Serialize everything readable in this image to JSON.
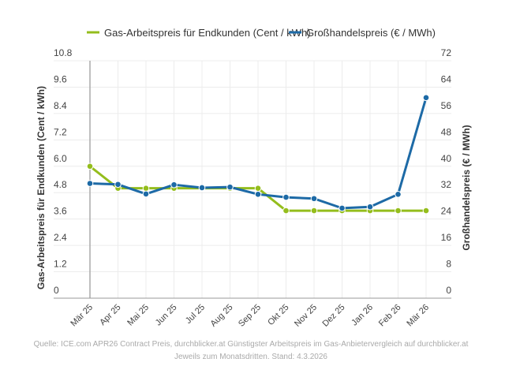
{
  "chart_data": {
    "type": "line",
    "categories": [
      "Mär 25",
      "Apr 25",
      "Mai 25",
      "Jun 25",
      "Jul 25",
      "Aug 25",
      "Sep 25",
      "Okt 25",
      "Nov 25",
      "Dez 25",
      "Jan 26",
      "Feb 26",
      "Mär 26"
    ],
    "series": [
      {
        "name": "Gas-Arbeitspreis für Endkunden (Cent / kWh)",
        "axis": "left",
        "color": "#94bd1c",
        "values": [
          6.0,
          5.0,
          5.0,
          5.0,
          5.0,
          5.0,
          5.0,
          3.98,
          3.98,
          3.98,
          3.98,
          3.98,
          3.98
        ]
      },
      {
        "name": "Großhandelspreis (€ / MWh)",
        "axis": "right",
        "color": "#1d6aa6",
        "values": [
          34.8,
          34.5,
          31.6,
          34.4,
          33.5,
          33.7,
          31.5,
          30.6,
          30.2,
          27.3,
          27.7,
          31.5,
          60.8
        ]
      }
    ],
    "ylabel_left": "Gas-Arbeitspreis für Endkunden (Cent / kWh)",
    "ylabel_right": "Großhandelspreis (€ / MWh)",
    "ylim_left": [
      0,
      10.8
    ],
    "ylim_right": [
      0,
      72
    ],
    "yticks_left": [
      "0",
      "1.2",
      "2.4",
      "3.6",
      "4.8",
      "6.0",
      "7.2",
      "8.4",
      "9.6",
      "10.8"
    ],
    "yticks_right": [
      "0",
      "8",
      "16",
      "24",
      "32",
      "40",
      "48",
      "56",
      "64",
      "72"
    ],
    "grid": true,
    "legend_position": "top-center"
  },
  "footer": {
    "source": "Quelle: ICE.com APR26 Contract Preis, durchblicker.at Günstigster Arbeitspreis im Gas-Anbietervergleich auf durchblicker.at",
    "note": "Jeweils zum Monatsdritten. Stand: 4.3.2026"
  }
}
